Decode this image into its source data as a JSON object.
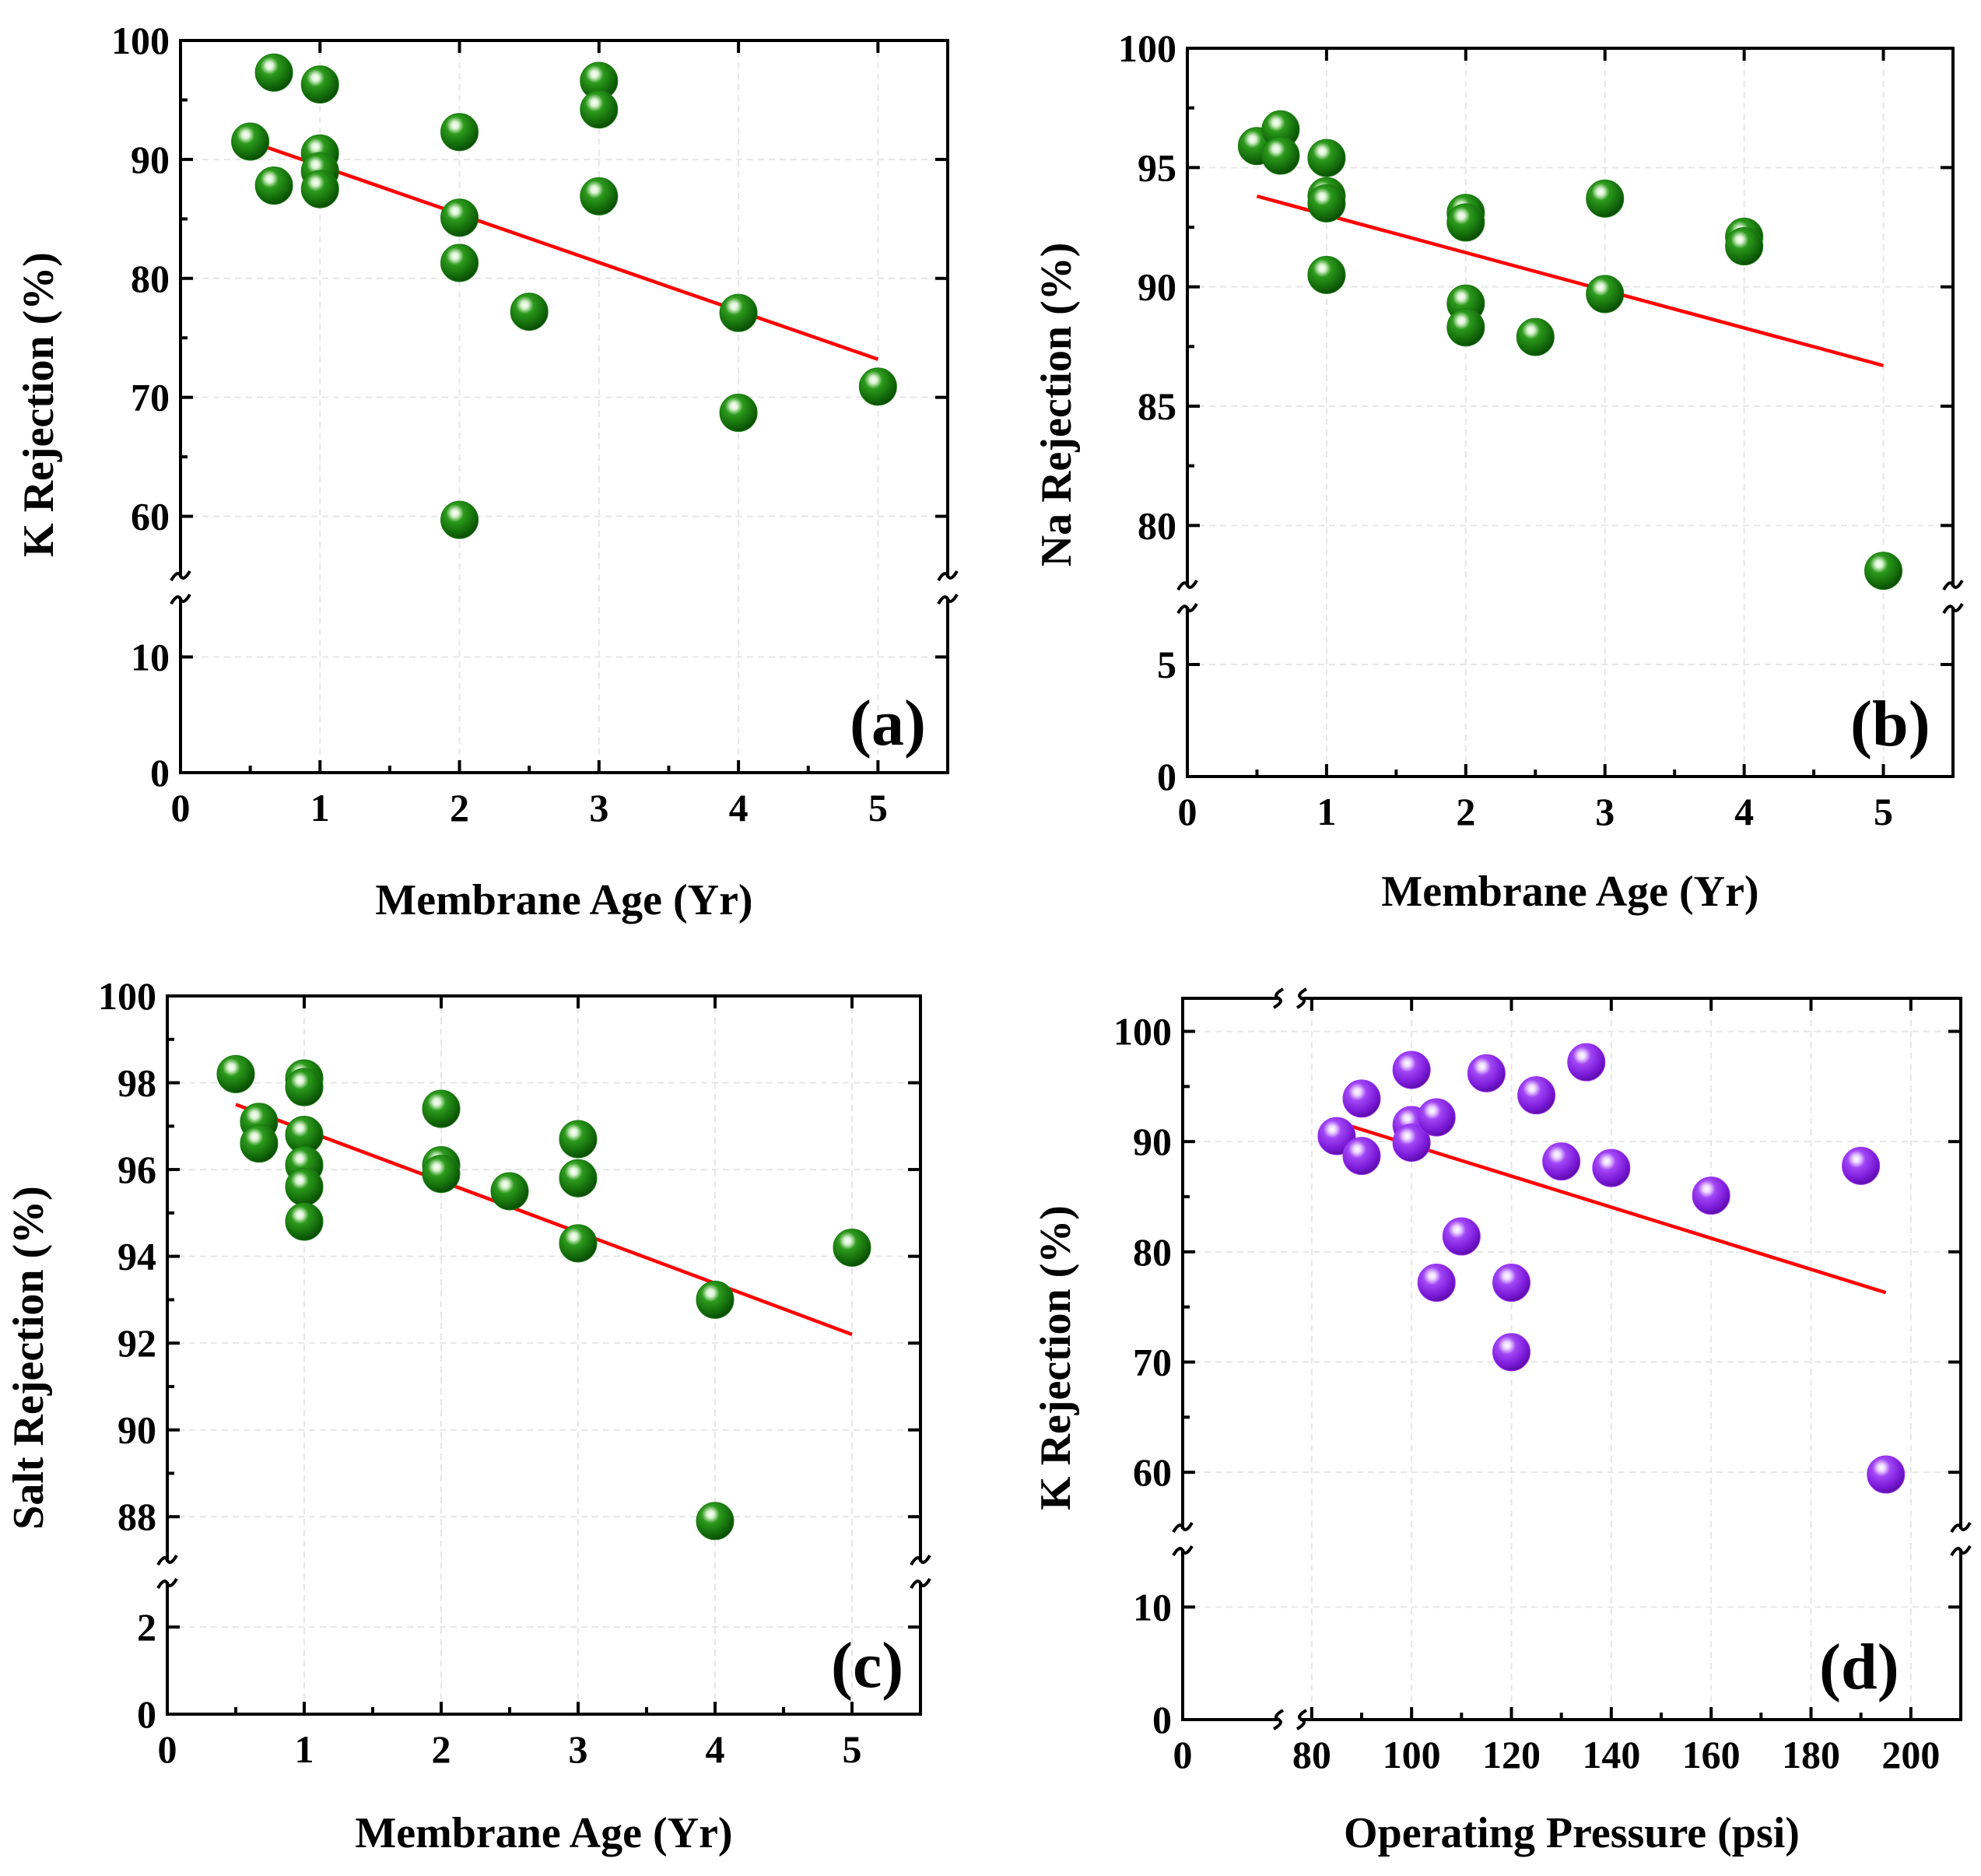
{
  "chart_data": [
    {
      "panel": "(a)",
      "type": "scatter",
      "xlabel": "Membrane Age (Yr)",
      "ylabel": "K Rejection (%)",
      "x_ticks": [
        "0",
        "1",
        "2",
        "3",
        "4",
        "5"
      ],
      "y_ticks": [
        "0",
        "10",
        "60",
        "70",
        "80",
        "90",
        "100"
      ],
      "xlim": [
        0,
        5.5
      ],
      "y_break": [
        15,
        55
      ],
      "ylim": [
        0,
        100
      ],
      "marker_color": "#1a7a10",
      "points": [
        {
          "x": 0.5,
          "y": 91.5
        },
        {
          "x": 0.67,
          "y": 97.3
        },
        {
          "x": 0.67,
          "y": 87.8
        },
        {
          "x": 1,
          "y": 96.3
        },
        {
          "x": 1,
          "y": 90.5
        },
        {
          "x": 1,
          "y": 89.0
        },
        {
          "x": 1,
          "y": 87.5
        },
        {
          "x": 2,
          "y": 92.3
        },
        {
          "x": 2,
          "y": 85.1
        },
        {
          "x": 2,
          "y": 81.3
        },
        {
          "x": 2,
          "y": 59.7
        },
        {
          "x": 2.5,
          "y": 77.2
        },
        {
          "x": 3,
          "y": 96.6
        },
        {
          "x": 3,
          "y": 94.2
        },
        {
          "x": 3,
          "y": 86.9
        },
        {
          "x": 4,
          "y": 77.1
        },
        {
          "x": 4,
          "y": 68.7
        },
        {
          "x": 5,
          "y": 70.9
        }
      ],
      "fit_line": {
        "x": [
          0.5,
          5
        ],
        "y": [
          91.5,
          73.2
        ]
      }
    },
    {
      "panel": "(b)",
      "type": "scatter",
      "xlabel": "Membrane Age (Yr)",
      "ylabel": "Na Rejection (%)",
      "x_ticks": [
        "0",
        "1",
        "2",
        "3",
        "4",
        "5"
      ],
      "y_ticks": [
        "0",
        "5",
        "80",
        "85",
        "90",
        "95",
        "100"
      ],
      "xlim": [
        0,
        5.5
      ],
      "y_break": [
        7.5,
        77.5
      ],
      "ylim": [
        0,
        100
      ],
      "marker_color": "#1a7a10",
      "points": [
        {
          "x": 0.5,
          "y": 95.9
        },
        {
          "x": 0.67,
          "y": 96.6
        },
        {
          "x": 0.67,
          "y": 95.5
        },
        {
          "x": 1,
          "y": 95.4
        },
        {
          "x": 1,
          "y": 93.8
        },
        {
          "x": 1,
          "y": 93.5
        },
        {
          "x": 1,
          "y": 90.5
        },
        {
          "x": 2,
          "y": 93.1
        },
        {
          "x": 2,
          "y": 92.7
        },
        {
          "x": 2,
          "y": 89.3
        },
        {
          "x": 2,
          "y": 88.3
        },
        {
          "x": 2.5,
          "y": 87.9
        },
        {
          "x": 3,
          "y": 93.7
        },
        {
          "x": 3,
          "y": 89.7
        },
        {
          "x": 4,
          "y": 92.1
        },
        {
          "x": 4,
          "y": 91.7
        },
        {
          "x": 5,
          "y": 78.1
        }
      ],
      "fit_line": {
        "x": [
          0.5,
          5
        ],
        "y": [
          93.8,
          86.7
        ]
      }
    },
    {
      "panel": "(c)",
      "type": "scatter",
      "xlabel": "Membrane Age (Yr)",
      "ylabel": "Salt Rejection (%)",
      "x_ticks": [
        "0",
        "1",
        "2",
        "3",
        "4",
        "5"
      ],
      "y_ticks": [
        "0",
        "2",
        "88",
        "90",
        "92",
        "94",
        "96",
        "98",
        "100"
      ],
      "xlim": [
        0,
        5.5
      ],
      "y_break": [
        3,
        87
      ],
      "ylim": [
        0,
        100
      ],
      "marker_color": "#1a7a10",
      "points": [
        {
          "x": 0.5,
          "y": 98.2
        },
        {
          "x": 0.67,
          "y": 97.1
        },
        {
          "x": 0.67,
          "y": 96.6
        },
        {
          "x": 1,
          "y": 98.1
        },
        {
          "x": 1,
          "y": 97.9
        },
        {
          "x": 1,
          "y": 96.8
        },
        {
          "x": 1,
          "y": 96.1
        },
        {
          "x": 1,
          "y": 95.6
        },
        {
          "x": 1,
          "y": 94.8
        },
        {
          "x": 2,
          "y": 97.4
        },
        {
          "x": 2,
          "y": 96.1
        },
        {
          "x": 2,
          "y": 95.9
        },
        {
          "x": 2.5,
          "y": 95.5
        },
        {
          "x": 3,
          "y": 96.7
        },
        {
          "x": 3,
          "y": 95.8
        },
        {
          "x": 3,
          "y": 94.3
        },
        {
          "x": 4,
          "y": 93.0
        },
        {
          "x": 4,
          "y": 87.9
        },
        {
          "x": 5,
          "y": 94.2
        }
      ],
      "fit_line": {
        "x": [
          0.5,
          5
        ],
        "y": [
          97.5,
          92.2
        ]
      }
    },
    {
      "panel": "(d)",
      "type": "scatter",
      "xlabel": "Operating Pressure (psi)",
      "ylabel": "K Rejection (%)",
      "x_ticks": [
        "0",
        "80",
        "100",
        "120",
        "140",
        "160",
        "180",
        "200"
      ],
      "y_ticks": [
        "0",
        "10",
        "60",
        "70",
        "80",
        "90",
        "100"
      ],
      "x_break": [
        20,
        78
      ],
      "xlim": [
        0,
        210
      ],
      "y_break": [
        15,
        55
      ],
      "ylim": [
        0,
        103
      ],
      "marker_color": "#9b30f0",
      "points": [
        {
          "x": 85,
          "y": 90.5
        },
        {
          "x": 90,
          "y": 93.9
        },
        {
          "x": 90,
          "y": 88.7
        },
        {
          "x": 100,
          "y": 96.5
        },
        {
          "x": 100,
          "y": 91.5
        },
        {
          "x": 100,
          "y": 89.9
        },
        {
          "x": 105,
          "y": 92.2
        },
        {
          "x": 105,
          "y": 77.2
        },
        {
          "x": 110,
          "y": 81.4
        },
        {
          "x": 115,
          "y": 96.2
        },
        {
          "x": 120,
          "y": 77.2
        },
        {
          "x": 120,
          "y": 70.9
        },
        {
          "x": 125,
          "y": 94.2
        },
        {
          "x": 130,
          "y": 88.2
        },
        {
          "x": 135,
          "y": 97.2
        },
        {
          "x": 140,
          "y": 87.6
        },
        {
          "x": 160,
          "y": 85.1
        },
        {
          "x": 190,
          "y": 87.8
        },
        {
          "x": 195,
          "y": 59.8
        }
      ],
      "fit_line": {
        "x": [
          85,
          195
        ],
        "y": [
          91.8,
          76.3
        ]
      }
    }
  ]
}
